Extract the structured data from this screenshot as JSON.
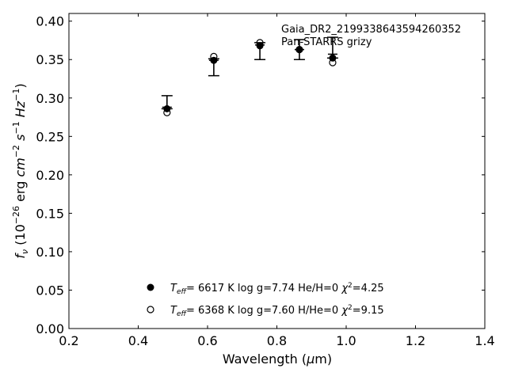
{
  "chart_data": {
    "type": "scatter",
    "title": "",
    "xlabel": "Wavelength (μm)",
    "ylabel": "f_ν (10^-26 erg cm^-2 s^-1 Hz^-1)",
    "xlim": [
      0.2,
      1.4
    ],
    "ylim": [
      0.0,
      0.41
    ],
    "xticks": [
      "0.2",
      "0.4",
      "0.6",
      "0.8",
      "1.0",
      "1.2",
      "1.4"
    ],
    "yticks": [
      "0.00",
      "0.05",
      "0.10",
      "0.15",
      "0.20",
      "0.25",
      "0.30",
      "0.35",
      "0.40"
    ],
    "grid": false,
    "annotation": [
      "Gaia_DR2_2199338643594260352",
      "Pan-STARRS grizy"
    ],
    "observed": {
      "x": [
        0.483,
        0.618,
        0.751,
        0.865,
        0.961
      ],
      "y": [
        0.288,
        0.349,
        0.369,
        0.363,
        0.357
      ],
      "y_lower": [
        0.286,
        0.329,
        0.35,
        0.35,
        0.352
      ],
      "y_upper": [
        0.303,
        0.351,
        0.372,
        0.376,
        0.379
      ]
    },
    "series": [
      {
        "name": "Teff= 6617 K  log g=7.74  He/H=0  χ²=4.25",
        "marker": "filled-circle",
        "x": [
          0.483,
          0.618,
          0.751,
          0.865,
          0.961
        ],
        "y": [
          0.286,
          0.349,
          0.368,
          0.363,
          0.352
        ]
      },
      {
        "name": "Teff= 6368 K  log g=7.60  H/He=0  χ²=9.15",
        "marker": "open-circle",
        "x": [
          0.483,
          0.618,
          0.751,
          0.865,
          0.961
        ],
        "y": [
          0.281,
          0.354,
          0.372,
          0.363,
          0.346
        ]
      }
    ],
    "legend": {
      "placement": "lower-center",
      "entries": [
        {
          "teff": "6617 K",
          "logg": "log g=7.74",
          "comp": "He/H=0",
          "chi2": "=4.25"
        },
        {
          "teff": "6368 K",
          "logg": "log g=7.60",
          "comp": "H/He=0",
          "chi2": "=9.15"
        }
      ]
    }
  }
}
